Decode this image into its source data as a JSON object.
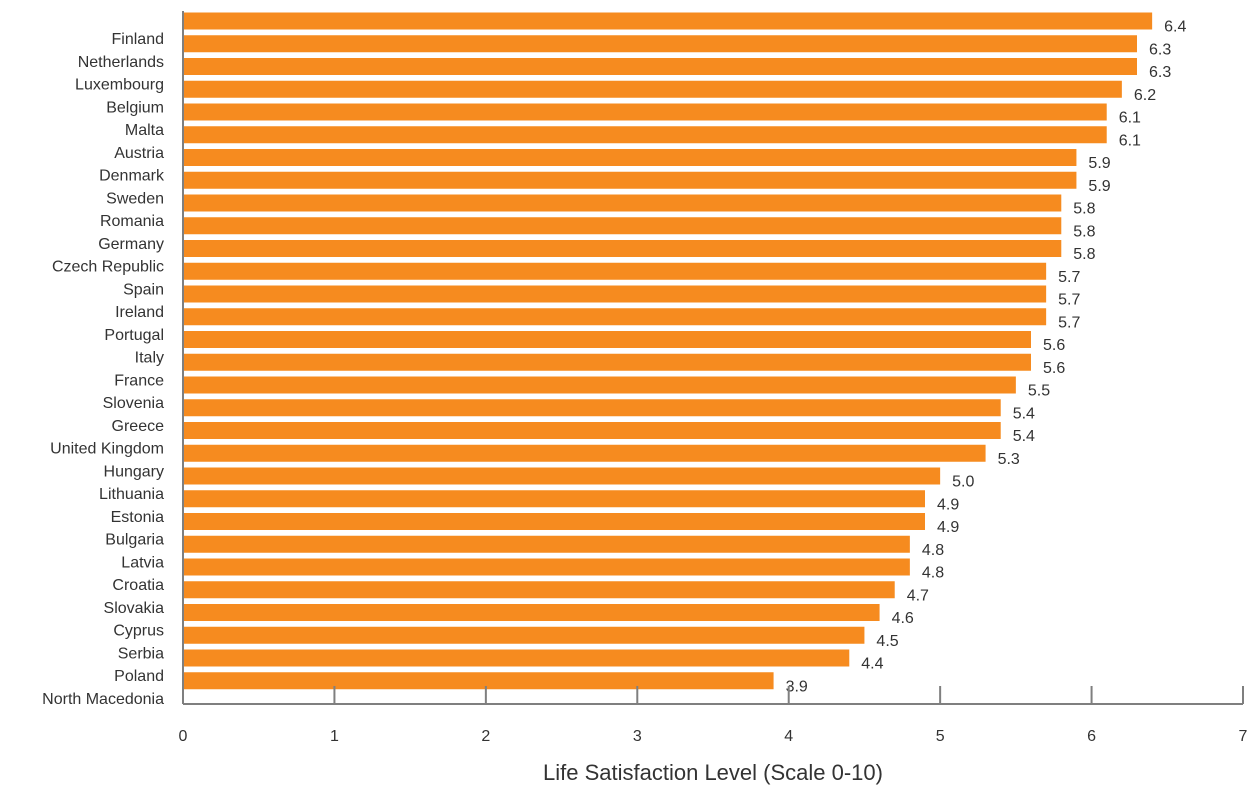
{
  "chart_data": {
    "type": "bar",
    "orientation": "horizontal",
    "xlabel": "Life Satisfaction Level (Scale 0-10)",
    "ylabel": "",
    "xlim": [
      0,
      7
    ],
    "x_ticks": [
      0,
      1,
      2,
      3,
      4,
      5,
      6,
      7
    ],
    "grid": false,
    "bar_color": "#F68B1F",
    "categories": [
      "Finland",
      "Netherlands",
      "Luxembourg",
      "Belgium",
      "Malta",
      "Austria",
      "Denmark",
      "Sweden",
      "Romania",
      "Germany",
      "Czech Republic",
      "Spain",
      "Ireland",
      "Portugal",
      "Italy",
      "France",
      "Slovenia",
      "Greece",
      "United Kingdom",
      "Hungary",
      "Lithuania",
      "Estonia",
      "Bulgaria",
      "Latvia",
      "Croatia",
      "Slovakia",
      "Cyprus",
      "Serbia",
      "Poland",
      "North Macedonia"
    ],
    "values": [
      6.4,
      6.3,
      6.3,
      6.2,
      6.1,
      6.1,
      5.9,
      5.9,
      5.8,
      5.8,
      5.8,
      5.7,
      5.7,
      5.7,
      5.6,
      5.6,
      5.5,
      5.4,
      5.4,
      5.3,
      5.0,
      4.9,
      4.9,
      4.8,
      4.8,
      4.7,
      4.6,
      4.5,
      4.4,
      3.9
    ],
    "value_labels": [
      "6.4",
      "6.3",
      "6.3",
      "6.2",
      "6.1",
      "6.1",
      "5.9",
      "5.9",
      "5.8",
      "5.8",
      "5.8",
      "5.7",
      "5.7",
      "5.7",
      "5.6",
      "5.6",
      "5.5",
      "5.4",
      "5.4",
      "5.3",
      "5.0",
      "4.9",
      "4.9",
      "4.8",
      "4.8",
      "4.7",
      "4.6",
      "4.5",
      "4.4",
      "3.9"
    ]
  }
}
